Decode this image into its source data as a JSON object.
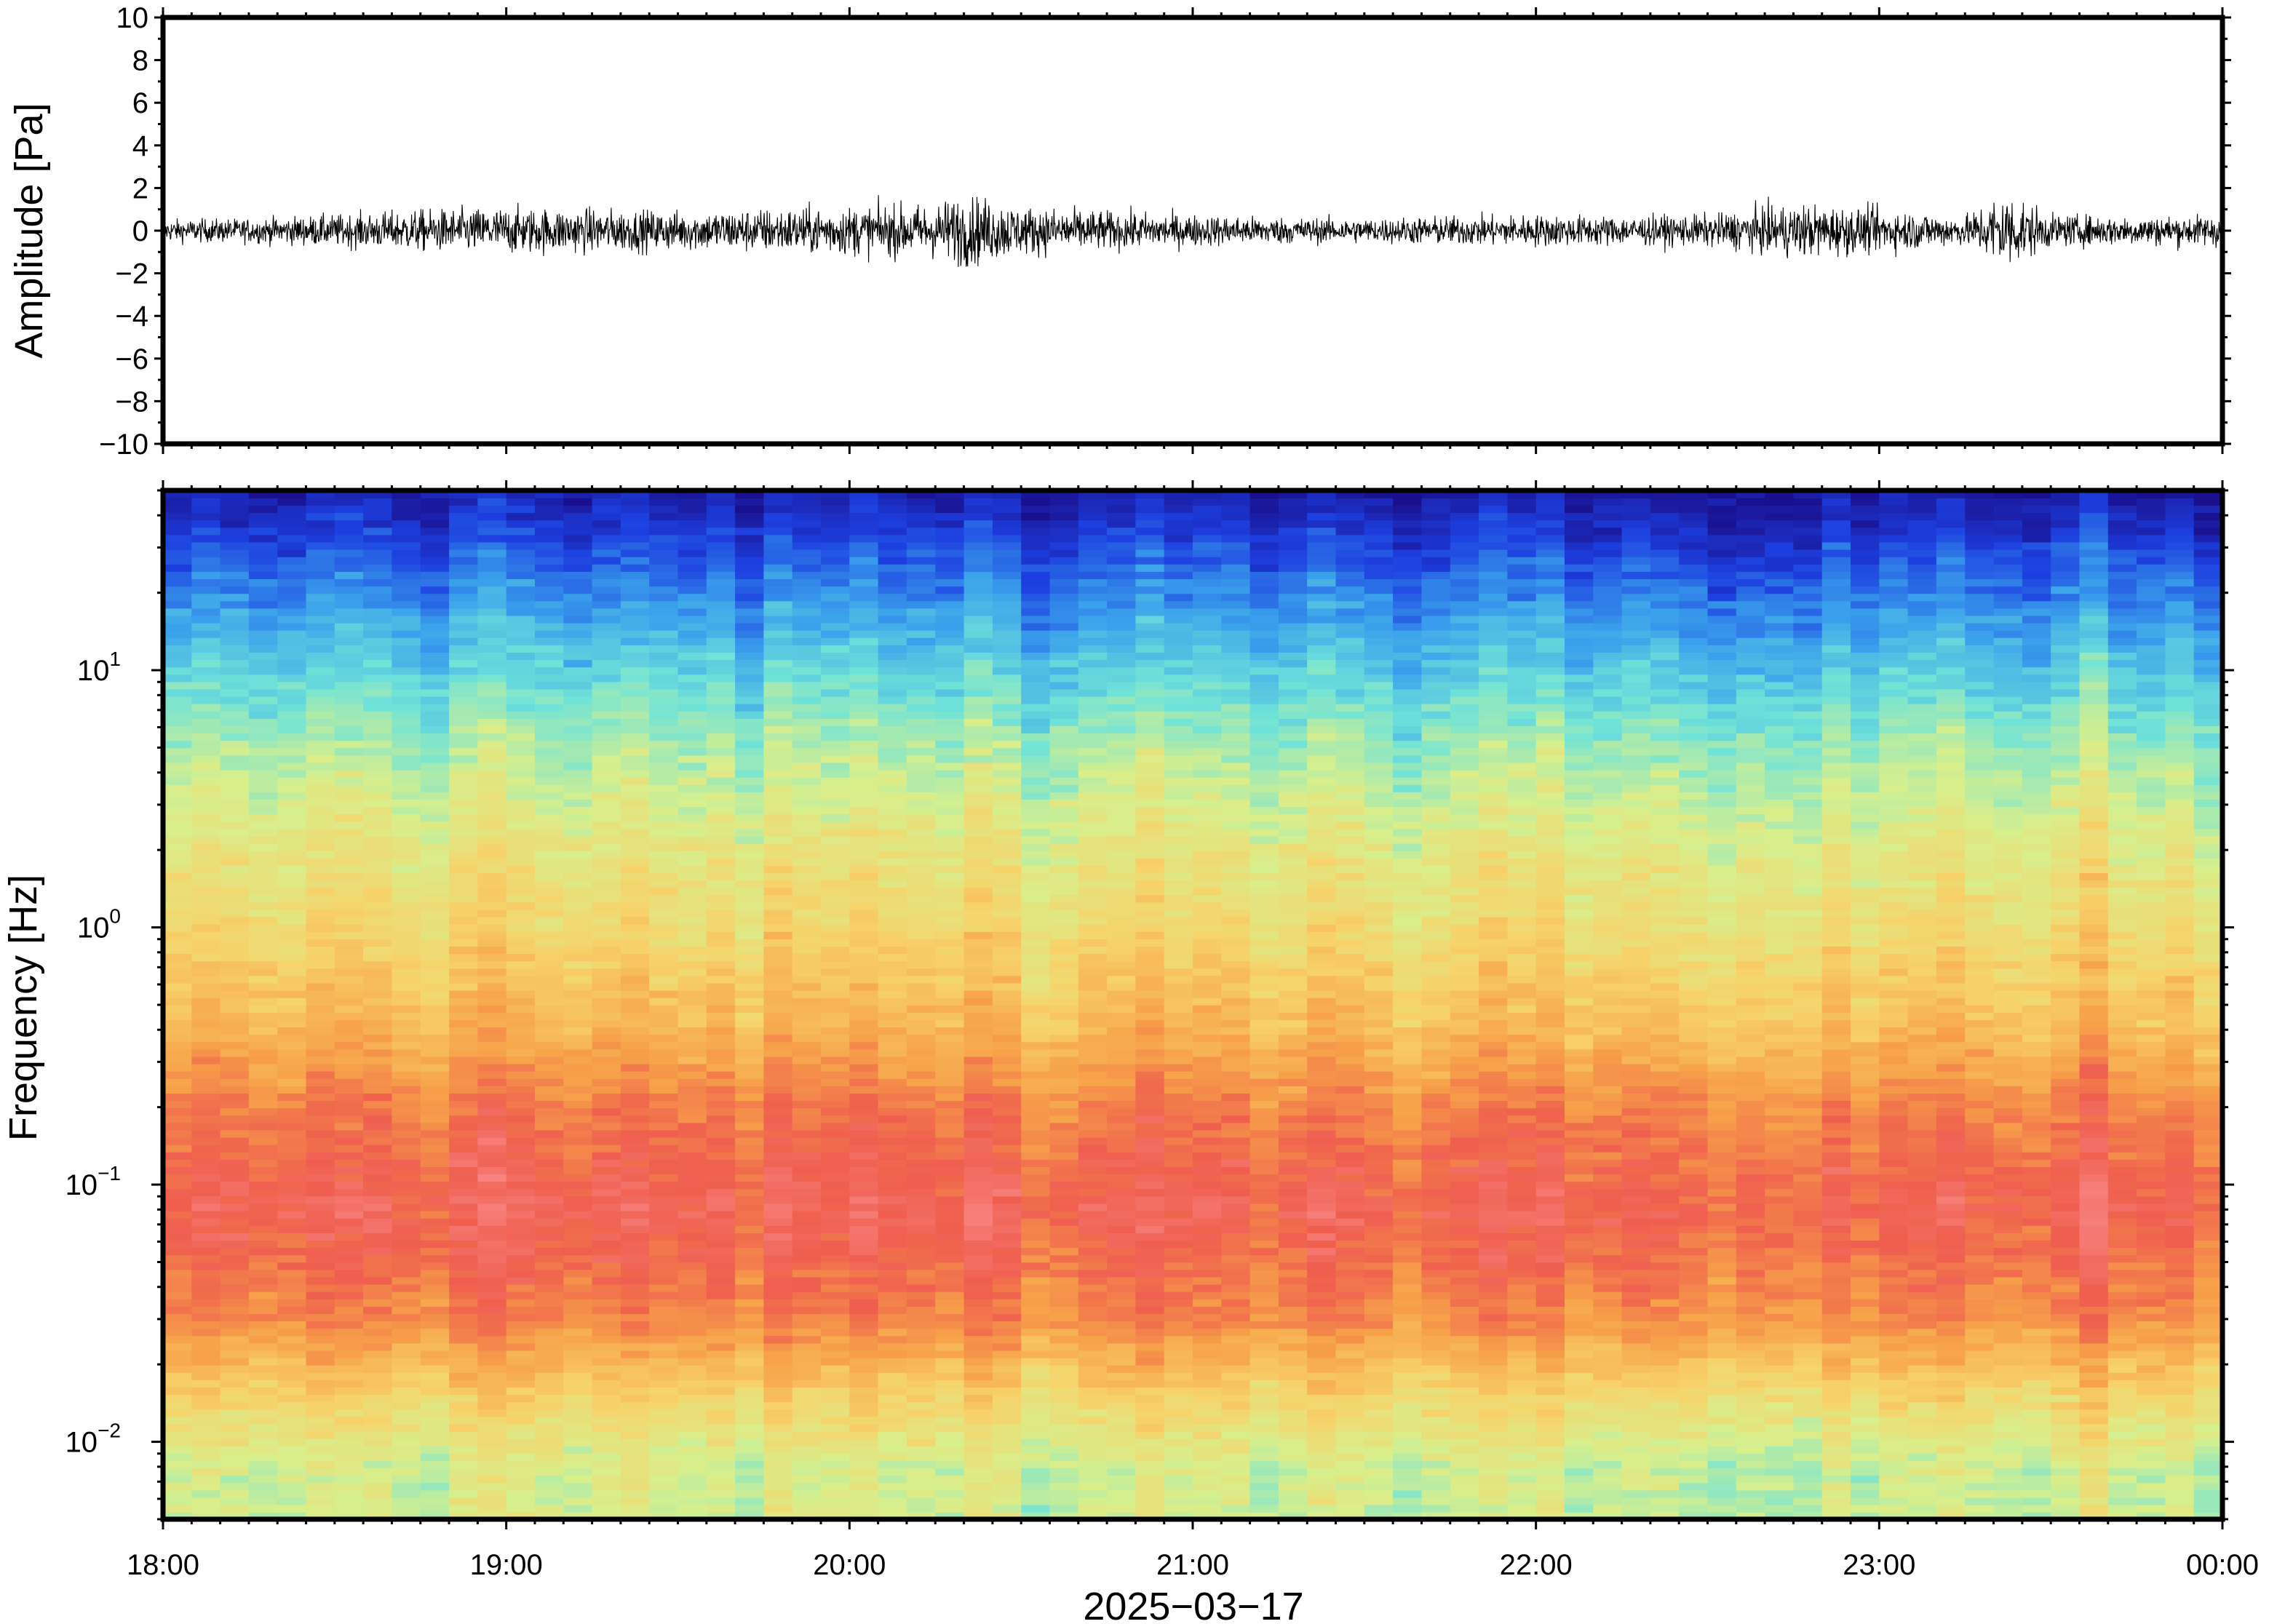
{
  "chart_data": [
    {
      "type": "line",
      "ylabel": "Amplitude [Pa]",
      "ylim": [
        -10,
        10
      ],
      "yticks": [
        "10",
        "8",
        "6",
        "4",
        "2",
        "0",
        "−2",
        "−4",
        "−6",
        "−8",
        "−10"
      ],
      "yticks_values": [
        10,
        8,
        6,
        4,
        2,
        0,
        -2,
        -4,
        -6,
        -8,
        -10
      ],
      "xlim": [
        "18:00",
        "00:00"
      ],
      "envelope_peaks": [
        {
          "x": "18:00",
          "y": 0.9
        },
        {
          "x": "18:15",
          "y": 1.0
        },
        {
          "x": "18:30",
          "y": 1.3
        },
        {
          "x": "18:45",
          "y": 1.7
        },
        {
          "x": "19:00",
          "y": 1.9
        },
        {
          "x": "19:15",
          "y": 1.8
        },
        {
          "x": "19:30",
          "y": 1.6
        },
        {
          "x": "19:45",
          "y": 1.8
        },
        {
          "x": "20:00",
          "y": 2.0
        },
        {
          "x": "20:15",
          "y": 2.2
        },
        {
          "x": "20:20",
          "y": 3.0
        },
        {
          "x": "20:30",
          "y": 2.0
        },
        {
          "x": "20:45",
          "y": 1.6
        },
        {
          "x": "21:00",
          "y": 1.3
        },
        {
          "x": "21:15",
          "y": 1.1
        },
        {
          "x": "21:30",
          "y": 1.0
        },
        {
          "x": "21:45",
          "y": 1.2
        },
        {
          "x": "22:00",
          "y": 1.3
        },
        {
          "x": "22:15",
          "y": 1.2
        },
        {
          "x": "22:30",
          "y": 1.3
        },
        {
          "x": "22:45",
          "y": 2.2
        },
        {
          "x": "23:00",
          "y": 1.8
        },
        {
          "x": "23:15",
          "y": 1.2
        },
        {
          "x": "23:22",
          "y": 3.3
        },
        {
          "x": "23:30",
          "y": 1.3
        },
        {
          "x": "23:45",
          "y": 1.2
        },
        {
          "x": "00:00",
          "y": 1.3
        }
      ]
    },
    {
      "type": "heatmap",
      "ylabel": "Frequency [Hz]",
      "yscale": "log",
      "ylim": [
        0.005,
        50
      ],
      "yticks": [
        {
          "base": "10",
          "exp": "1",
          "value": 10
        },
        {
          "base": "10",
          "exp": "0",
          "value": 1
        },
        {
          "base": "10",
          "exp": "−1",
          "value": 0.1
        },
        {
          "base": "10",
          "exp": "−2",
          "value": 0.01
        }
      ],
      "xlabel": "2025−03−17",
      "xticks": [
        "18:00",
        "19:00",
        "20:00",
        "21:00",
        "22:00",
        "23:00",
        "00:00"
      ],
      "colormap": [
        "#1a0f8c",
        "#1d3fe0",
        "#3aa0ec",
        "#70e3d8",
        "#d8ef8c",
        "#f7d26a",
        "#f7a24a",
        "#ef5e4e",
        "#fa8a8a"
      ],
      "power_profile_by_frequency": [
        {
          "frequency_hz": 50,
          "level": 0.04
        },
        {
          "frequency_hz": 20,
          "level": 0.22
        },
        {
          "frequency_hz": 10,
          "level": 0.34
        },
        {
          "frequency_hz": 5,
          "level": 0.45
        },
        {
          "frequency_hz": 2,
          "level": 0.55
        },
        {
          "frequency_hz": 1,
          "level": 0.6
        },
        {
          "frequency_hz": 0.4,
          "level": 0.7
        },
        {
          "frequency_hz": 0.2,
          "level": 0.82
        },
        {
          "frequency_hz": 0.08,
          "level": 0.9
        },
        {
          "frequency_hz": 0.03,
          "level": 0.8
        },
        {
          "frequency_hz": 0.015,
          "level": 0.62
        },
        {
          "frequency_hz": 0.008,
          "level": 0.5
        }
      ]
    }
  ]
}
